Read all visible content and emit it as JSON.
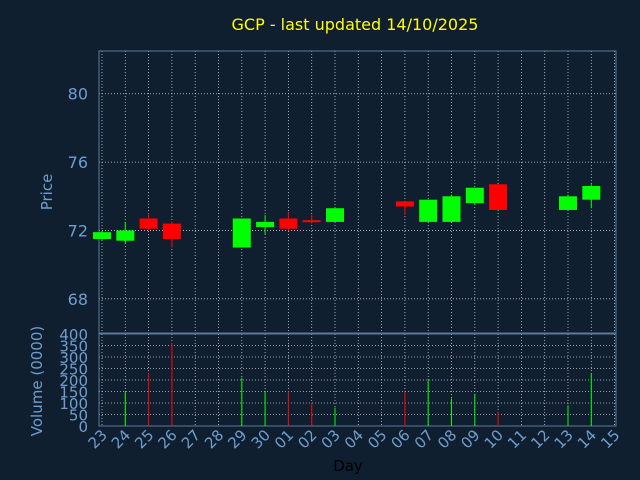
{
  "chart_data": [
    {
      "type": "candlestick",
      "title": "GCP - last updated 14/10/2025",
      "ylabel": "Price",
      "ylim": [
        66,
        82.5
      ],
      "yticks": [
        68,
        72,
        76,
        80
      ],
      "x": [
        "23",
        "24",
        "25",
        "26",
        "27",
        "28",
        "29",
        "30",
        "01",
        "02",
        "03",
        "04",
        "05",
        "06",
        "07",
        "08",
        "09",
        "10",
        "11",
        "12",
        "13",
        "14",
        "15"
      ],
      "grid": true,
      "candles": [
        {
          "day": "23",
          "open": 71.5,
          "high": 71.9,
          "low": 71.4,
          "close": 71.9
        },
        {
          "day": "24",
          "open": 71.4,
          "high": 72.5,
          "low": 71.2,
          "close": 72.0
        },
        {
          "day": "25",
          "open": 72.7,
          "high": 73.0,
          "low": 72.0,
          "close": 72.1
        },
        {
          "day": "26",
          "open": 72.4,
          "high": 72.5,
          "low": 71.0,
          "close": 71.5
        },
        {
          "day": "29",
          "open": 71.0,
          "high": 72.7,
          "low": 71.0,
          "close": 72.7
        },
        {
          "day": "30",
          "open": 72.2,
          "high": 72.9,
          "low": 71.8,
          "close": 72.5
        },
        {
          "day": "01",
          "open": 72.7,
          "high": 73.1,
          "low": 72.0,
          "close": 72.1
        },
        {
          "day": "02",
          "open": 72.6,
          "high": 72.9,
          "low": 72.4,
          "close": 72.5
        },
        {
          "day": "03",
          "open": 72.5,
          "high": 73.3,
          "low": 72.5,
          "close": 73.3
        },
        {
          "day": "06",
          "open": 73.7,
          "high": 73.7,
          "low": 72.9,
          "close": 73.4
        },
        {
          "day": "07",
          "open": 72.5,
          "high": 73.8,
          "low": 72.5,
          "close": 73.8
        },
        {
          "day": "08",
          "open": 72.5,
          "high": 74.1,
          "low": 72.5,
          "close": 74.0
        },
        {
          "day": "09",
          "open": 73.6,
          "high": 74.5,
          "low": 73.5,
          "close": 74.5
        },
        {
          "day": "10",
          "open": 74.7,
          "high": 74.7,
          "low": 73.2,
          "close": 73.2
        },
        {
          "day": "13",
          "open": 73.2,
          "high": 74.1,
          "low": 73.2,
          "close": 74.0
        },
        {
          "day": "14",
          "open": 73.8,
          "high": 74.7,
          "low": 73.3,
          "close": 74.6
        }
      ],
      "colors": {
        "up": "#00ff00",
        "down": "#ff0000",
        "background": "#0f1f30",
        "grid": "#c8c8c8",
        "axis": "#5a7a9a",
        "text": "#6f9ecf",
        "title": "#ffff00"
      }
    },
    {
      "type": "bar",
      "ylabel": "Volume (0000)",
      "xlabel": "Day",
      "ylim": [
        0,
        400
      ],
      "yticks": [
        0,
        50,
        100,
        150,
        200,
        250,
        300,
        350,
        400
      ],
      "categories": [
        "23",
        "24",
        "25",
        "26",
        "27",
        "28",
        "29",
        "30",
        "01",
        "02",
        "03",
        "04",
        "05",
        "06",
        "07",
        "08",
        "09",
        "10",
        "11",
        "12",
        "13",
        "14",
        "15"
      ],
      "bars": [
        {
          "day": "24",
          "value": 150,
          "color": "up"
        },
        {
          "day": "25",
          "value": 230,
          "color": "down"
        },
        {
          "day": "26",
          "value": 360,
          "color": "down"
        },
        {
          "day": "29",
          "value": 210,
          "color": "up"
        },
        {
          "day": "30",
          "value": 150,
          "color": "up"
        },
        {
          "day": "01",
          "value": 150,
          "color": "down"
        },
        {
          "day": "02",
          "value": 100,
          "color": "down"
        },
        {
          "day": "03",
          "value": 80,
          "color": "up"
        },
        {
          "day": "06",
          "value": 150,
          "color": "down"
        },
        {
          "day": "07",
          "value": 200,
          "color": "up"
        },
        {
          "day": "08",
          "value": 120,
          "color": "up"
        },
        {
          "day": "09",
          "value": 140,
          "color": "up"
        },
        {
          "day": "10",
          "value": 60,
          "color": "down"
        },
        {
          "day": "13",
          "value": 90,
          "color": "up"
        },
        {
          "day": "14",
          "value": 230,
          "color": "up"
        }
      ]
    }
  ]
}
